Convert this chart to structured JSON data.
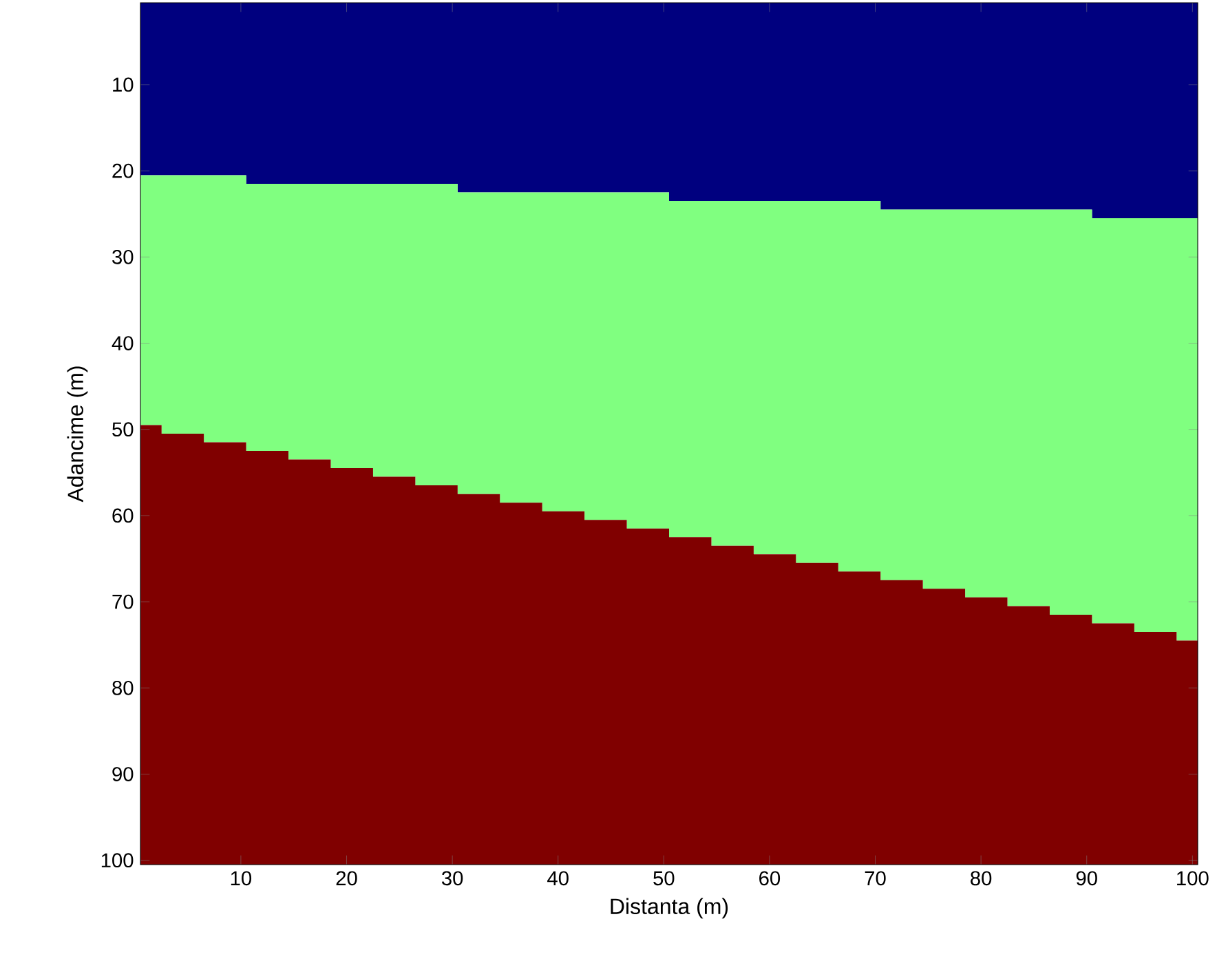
{
  "chart_data": {
    "type": "area",
    "stacked": true,
    "xlabel": "Distanta (m)",
    "ylabel": "Adancime (m)",
    "x": [
      0.5,
      2.5,
      6.5,
      10.5,
      14.5,
      18.5,
      22.5,
      26.5,
      30.5,
      34.5,
      38.5,
      42.5,
      46.5,
      50.5,
      54.5,
      58.5,
      62.5,
      66.5,
      70.5,
      74.5,
      78.5,
      82.5,
      86.5,
      90.5,
      94.5,
      98.5,
      100.5
    ],
    "series": [
      {
        "color": "#00007f",
        "values": [
          20.5,
          20.5,
          20.5,
          21.5,
          21.5,
          21.5,
          21.5,
          21.5,
          22.5,
          22.5,
          22.5,
          22.5,
          22.5,
          23.5,
          23.5,
          23.5,
          23.5,
          23.5,
          24.5,
          24.5,
          24.5,
          24.5,
          24.5,
          25.5,
          25.5,
          25.5,
          25.5
        ]
      },
      {
        "color": "#80ff80",
        "values": [
          29,
          30,
          31,
          31,
          32,
          33,
          34,
          35,
          35,
          36,
          37,
          38,
          39,
          39,
          40,
          41,
          42,
          43,
          43,
          44,
          45,
          46,
          47,
          47,
          48,
          49,
          49
        ]
      },
      {
        "color": "#800000",
        "values": [
          51,
          50,
          49,
          48,
          47,
          46,
          45,
          44,
          43,
          42,
          41,
          40,
          39,
          38,
          37,
          36,
          35,
          34,
          33,
          32,
          31,
          30,
          29,
          28,
          27,
          26,
          26
        ]
      }
    ],
    "xlim": [
      0.5,
      100.5
    ],
    "ylim": [
      100.5,
      0.5
    ],
    "xticks": [
      10,
      20,
      30,
      40,
      50,
      60,
      70,
      80,
      90,
      100
    ],
    "yticks": [
      10,
      20,
      30,
      40,
      50,
      60,
      70,
      80,
      90,
      100
    ]
  }
}
